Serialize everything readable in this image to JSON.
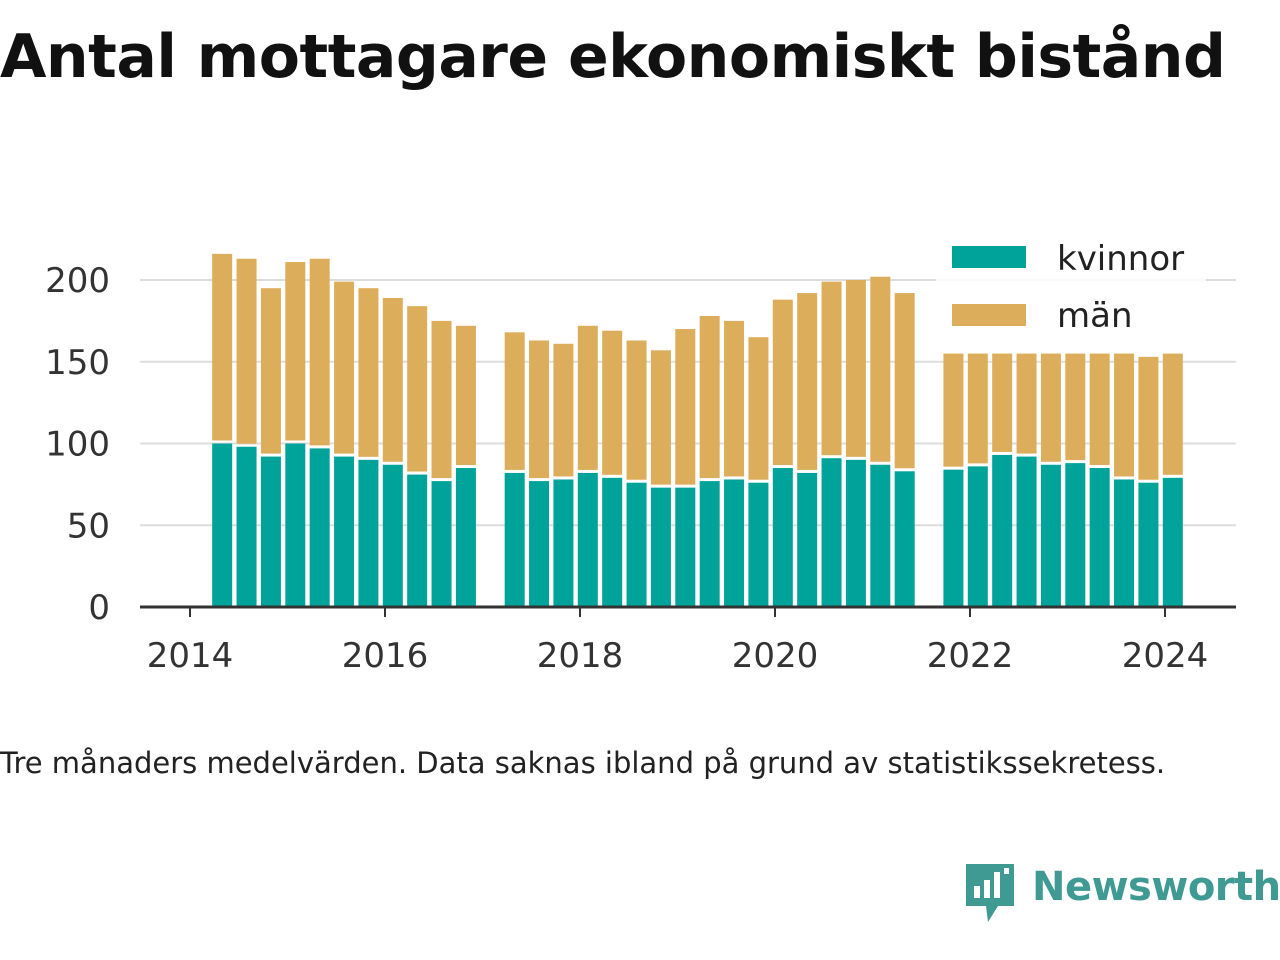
{
  "title": "Antal mottagare ekonomiskt bistånd",
  "note": "Tre månaders medelvärden. Data saknas ibland på grund av statistikssekretess.",
  "brand": {
    "name": "Newsworthy",
    "icon": "newsworthy-logo-icon",
    "color": "#3f9a93"
  },
  "colors": {
    "kvinnor": "#00a39a",
    "man": "#dcae5c",
    "grid": "#dddddd",
    "axis": "#333333"
  },
  "chart_data": {
    "type": "bar",
    "stacked": true,
    "x_axis": {
      "type": "date",
      "ticks": [
        2014,
        2016,
        2018,
        2020,
        2022,
        2024
      ],
      "range": [
        2013.5,
        2024.7
      ]
    },
    "y_axis": {
      "ticks": [
        0,
        50,
        100,
        150,
        200
      ],
      "range": [
        0,
        200
      ]
    },
    "grid": true,
    "legend": {
      "position": "top-right",
      "entries": [
        "kvinnor",
        "män"
      ]
    },
    "x": [
      2014.33,
      2014.58,
      2014.83,
      2015.08,
      2015.33,
      2015.58,
      2015.83,
      2016.08,
      2016.33,
      2016.58,
      2016.83,
      2017.33,
      2017.58,
      2017.83,
      2018.08,
      2018.33,
      2018.58,
      2018.83,
      2019.08,
      2019.33,
      2019.58,
      2019.83,
      2020.08,
      2020.33,
      2020.58,
      2020.83,
      2021.08,
      2021.33,
      2021.83,
      2022.08,
      2022.33,
      2022.58,
      2022.83,
      2023.08,
      2023.33,
      2023.58,
      2023.83,
      2024.08
    ],
    "series": [
      {
        "name": "kvinnor",
        "color": "#00a39a",
        "values": [
          100,
          98,
          92,
          100,
          97,
          92,
          90,
          87,
          81,
          77,
          85,
          82,
          77,
          78,
          82,
          79,
          76,
          73,
          73,
          77,
          78,
          76,
          85,
          82,
          91,
          90,
          87,
          83,
          84,
          86,
          93,
          92,
          87,
          88,
          85,
          78,
          76,
          79
        ]
      },
      {
        "name": "män",
        "color": "#dcae5c",
        "values": [
          116,
          115,
          103,
          111,
          116,
          107,
          105,
          102,
          103,
          98,
          87,
          86,
          86,
          83,
          90,
          90,
          87,
          84,
          97,
          101,
          97,
          89,
          103,
          110,
          108,
          110,
          115,
          109,
          71,
          69,
          62,
          63,
          68,
          67,
          70,
          77,
          77,
          76
        ]
      }
    ]
  }
}
